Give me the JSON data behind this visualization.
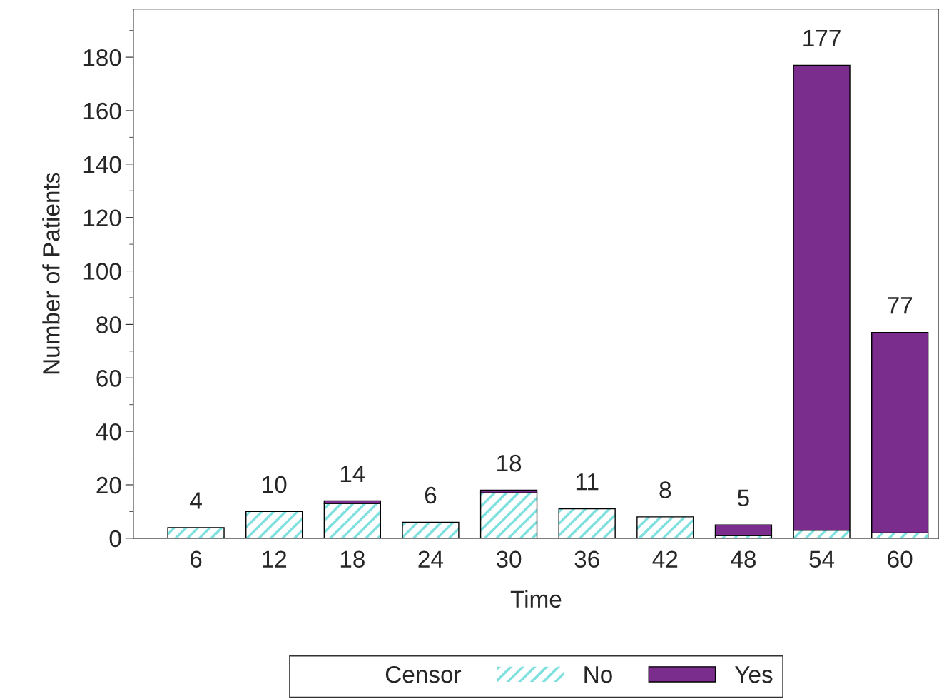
{
  "chart_data": {
    "type": "bar",
    "stacked": true,
    "xlabel": "Time",
    "ylabel": "Number of Patients",
    "legend_title": "Censor",
    "categories": [
      "6",
      "12",
      "18",
      "24",
      "30",
      "36",
      "42",
      "48",
      "54",
      "60"
    ],
    "series": [
      {
        "name": "No",
        "color": "#7fe0e0",
        "values": [
          4,
          10,
          13,
          6,
          17,
          11,
          8,
          1,
          3,
          2
        ]
      },
      {
        "name": "Yes",
        "color": "#7b2d8e",
        "values": [
          0,
          0,
          1,
          0,
          1,
          0,
          0,
          4,
          174,
          75
        ]
      }
    ],
    "totals": [
      "4",
      "10",
      "14",
      "6",
      "18",
      "11",
      "8",
      "5",
      "177",
      "77"
    ],
    "ylim": [
      0,
      198
    ],
    "yticks": [
      0,
      20,
      40,
      60,
      80,
      100,
      120,
      140,
      160,
      180
    ],
    "grid": false,
    "legend": "bottom"
  }
}
